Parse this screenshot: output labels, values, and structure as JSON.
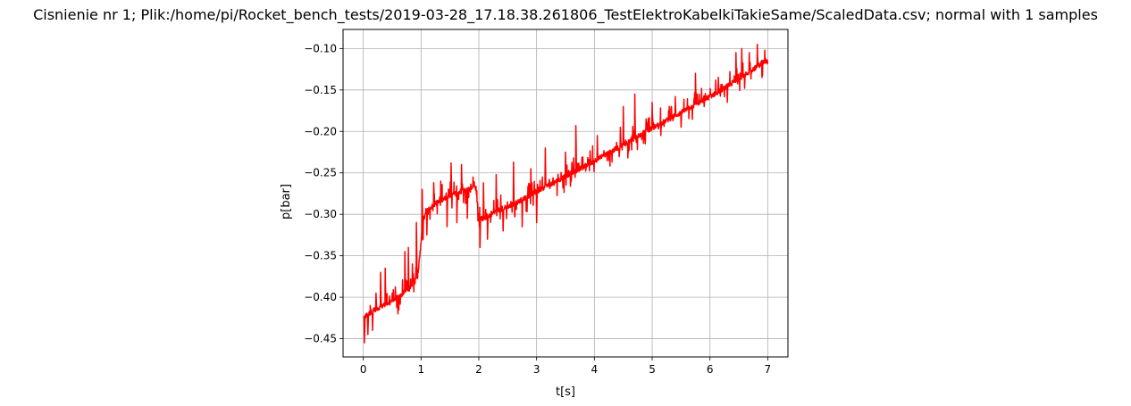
{
  "chart_data": {
    "type": "line",
    "title": "Cisnienie nr 1; Plik:/home/pi/Rocket_bench_tests/2019-03-28_17.18.38.261806_TestElektroKabelkiTakieSame/ScaledData.csv; normal with 1 samples",
    "xlabel": "t[s]",
    "ylabel": "p[bar]",
    "xlim": [
      -0.35,
      7.35
    ],
    "ylim": [
      -0.472,
      -0.077
    ],
    "xticks": [
      0,
      1,
      2,
      3,
      4,
      5,
      6,
      7
    ],
    "xtick_labels": [
      "0",
      "1",
      "2",
      "3",
      "4",
      "5",
      "6",
      "7"
    ],
    "yticks": [
      -0.45,
      -0.4,
      -0.35,
      -0.3,
      -0.25,
      -0.2,
      -0.15,
      -0.1
    ],
    "ytick_labels": [
      "−0.45",
      "−0.40",
      "−0.35",
      "−0.30",
      "−0.25",
      "−0.20",
      "−0.15",
      "−0.10"
    ],
    "grid": true,
    "series": [
      {
        "color": "#ff0000",
        "baseline": {
          "x": [
            0.0,
            0.2,
            0.5,
            0.8,
            0.95,
            1.0,
            1.05,
            1.1,
            1.3,
            1.5,
            1.7,
            1.95,
            2.0,
            2.1,
            2.3,
            2.6,
            3.0,
            3.4,
            3.8,
            4.2,
            4.6,
            5.0,
            5.4,
            5.8,
            6.2,
            6.6,
            7.0
          ],
          "y": [
            -0.425,
            -0.415,
            -0.405,
            -0.39,
            -0.37,
            -0.335,
            -0.305,
            -0.295,
            -0.285,
            -0.278,
            -0.272,
            -0.268,
            -0.305,
            -0.305,
            -0.296,
            -0.288,
            -0.272,
            -0.258,
            -0.243,
            -0.228,
            -0.212,
            -0.196,
            -0.181,
            -0.166,
            -0.15,
            -0.132,
            -0.113
          ]
        },
        "spikes": [
          [
            0.02,
            -0.455
          ],
          [
            0.05,
            -0.42
          ],
          [
            0.08,
            -0.445
          ],
          [
            0.12,
            -0.41
          ],
          [
            0.16,
            -0.44
          ],
          [
            0.22,
            -0.395
          ],
          [
            0.3,
            -0.37
          ],
          [
            0.38,
            -0.365
          ],
          [
            0.5,
            -0.395
          ],
          [
            0.6,
            -0.42
          ],
          [
            0.72,
            -0.345
          ],
          [
            0.78,
            -0.34
          ],
          [
            0.85,
            -0.36
          ],
          [
            0.92,
            -0.31
          ],
          [
            1.02,
            -0.27
          ],
          [
            1.1,
            -0.325
          ],
          [
            1.22,
            -0.262
          ],
          [
            1.34,
            -0.26
          ],
          [
            1.45,
            -0.315
          ],
          [
            1.52,
            -0.238
          ],
          [
            1.62,
            -0.31
          ],
          [
            1.7,
            -0.24
          ],
          [
            1.8,
            -0.305
          ],
          [
            1.9,
            -0.255
          ],
          [
            2.02,
            -0.34
          ],
          [
            2.08,
            -0.262
          ],
          [
            2.15,
            -0.33
          ],
          [
            2.3,
            -0.252
          ],
          [
            2.42,
            -0.32
          ],
          [
            2.6,
            -0.237
          ],
          [
            2.75,
            -0.315
          ],
          [
            2.9,
            -0.245
          ],
          [
            3.0,
            -0.31
          ],
          [
            3.15,
            -0.22
          ],
          [
            3.3,
            -0.265
          ],
          [
            3.5,
            -0.225
          ],
          [
            3.6,
            -0.26
          ],
          [
            3.68,
            -0.193
          ],
          [
            3.85,
            -0.248
          ],
          [
            4.05,
            -0.205
          ],
          [
            4.25,
            -0.235
          ],
          [
            4.45,
            -0.195
          ],
          [
            4.5,
            -0.17
          ],
          [
            4.58,
            -0.232
          ],
          [
            4.65,
            -0.205
          ],
          [
            4.7,
            -0.155
          ],
          [
            4.82,
            -0.21
          ],
          [
            5.0,
            -0.165
          ],
          [
            5.15,
            -0.205
          ],
          [
            5.4,
            -0.158
          ],
          [
            5.5,
            -0.195
          ],
          [
            5.75,
            -0.13
          ],
          [
            5.9,
            -0.17
          ],
          [
            6.1,
            -0.138
          ],
          [
            6.3,
            -0.165
          ],
          [
            6.45,
            -0.105
          ],
          [
            6.55,
            -0.1
          ],
          [
            6.6,
            -0.148
          ],
          [
            6.68,
            -0.105
          ],
          [
            6.82,
            -0.095
          ],
          [
            6.9,
            -0.135
          ],
          [
            6.96,
            -0.112
          ]
        ]
      }
    ]
  }
}
